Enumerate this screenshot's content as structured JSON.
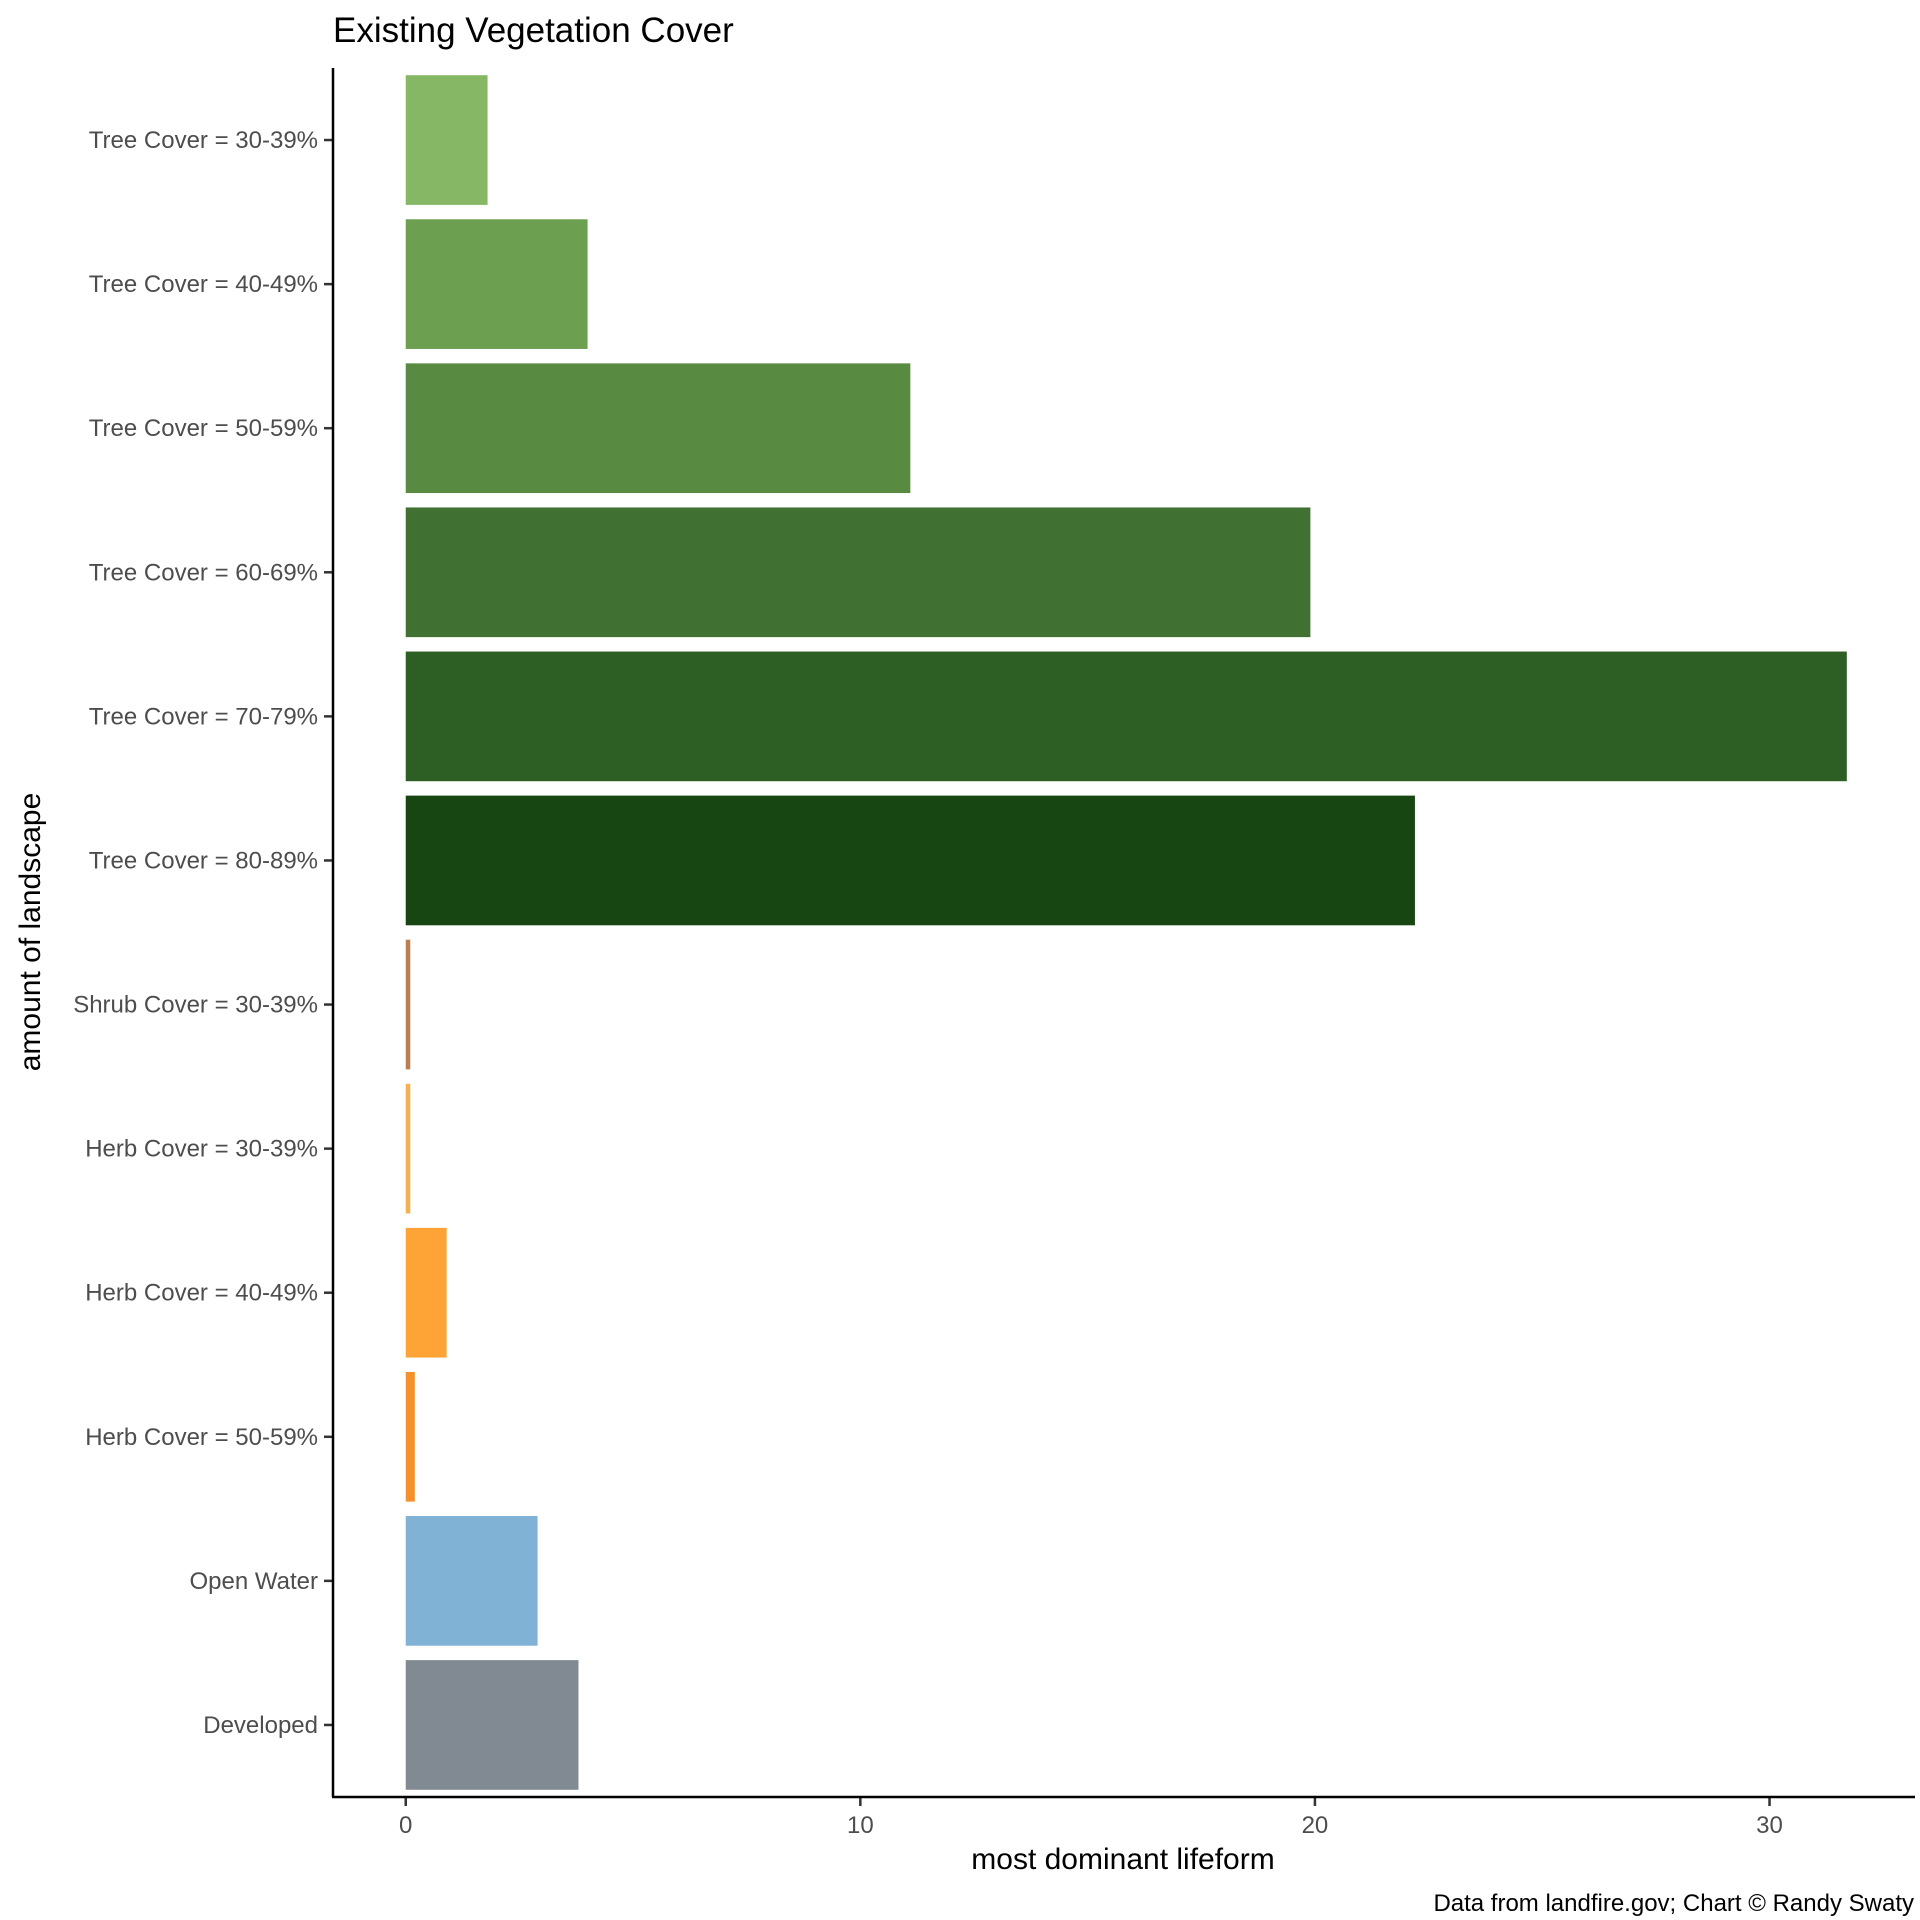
{
  "chart_data": {
    "type": "bar",
    "orientation": "horizontal",
    "title": "Existing Vegetation Cover",
    "xlabel": "most dominant lifeform",
    "ylabel": "amount of landscape",
    "caption": "Data from landfire.gov; Chart © Randy Swaty",
    "xlim": [
      -1.6,
      33.2
    ],
    "x_ticks": [
      0,
      10,
      20,
      30
    ],
    "grid": false,
    "legend": "none",
    "categories": [
      "Tree Cover = 30-39%",
      "Tree Cover = 40-49%",
      "Tree Cover = 50-59%",
      "Tree Cover = 60-69%",
      "Tree Cover = 70-79%",
      "Tree Cover = 80-89%",
      "Shrub Cover = 30-39%",
      "Herb Cover = 30-39%",
      "Herb Cover = 40-49%",
      "Herb Cover = 50-59%",
      "Open Water",
      "Developed"
    ],
    "values": [
      1.8,
      4.0,
      11.1,
      19.9,
      31.7,
      22.2,
      0.1,
      0.1,
      0.9,
      0.2,
      2.9,
      3.8
    ],
    "colors": [
      "#86b765",
      "#6d9f51",
      "#588a42",
      "#407133",
      "#2d5e24",
      "#174613",
      "#b88052",
      "#f2b14e",
      "#fea436",
      "#f3922c",
      "#80b2d5",
      "#818a93"
    ]
  }
}
